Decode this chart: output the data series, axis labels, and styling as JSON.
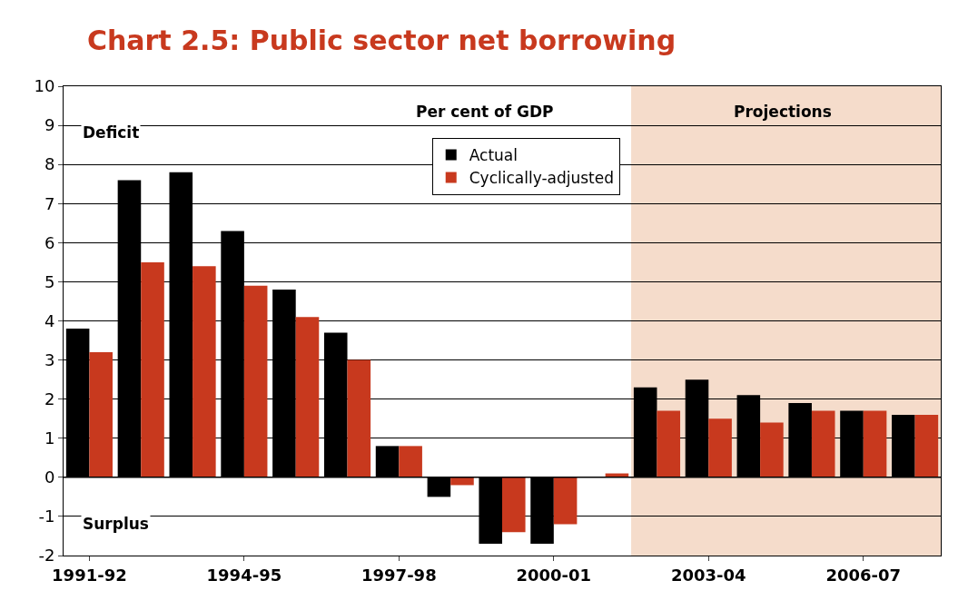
{
  "chart_data": {
    "type": "bar",
    "title": "Chart 2.5: Public sector net borrowing",
    "categories": [
      "1991-92",
      null,
      null,
      "1994-95",
      null,
      null,
      "1997-98",
      null,
      null,
      "2000-01",
      null,
      null,
      "2003-04",
      null,
      null,
      "2006-07",
      null
    ],
    "series": [
      {
        "name": "Actual",
        "color": "#000000",
        "values": [
          3.8,
          7.6,
          7.8,
          6.3,
          4.8,
          3.7,
          0.8,
          -0.5,
          -1.7,
          -1.7,
          0,
          2.3,
          2.5,
          2.1,
          1.9,
          1.7,
          1.6
        ]
      },
      {
        "name": "Cyclically-adjusted",
        "color": "#c8391e",
        "values": [
          3.2,
          5.5,
          5.4,
          4.9,
          4.1,
          3.0,
          0.8,
          -0.2,
          -1.4,
          -1.2,
          0.1,
          1.7,
          1.5,
          1.4,
          1.7,
          1.7,
          1.6
        ]
      }
    ],
    "ylim": [
      -2,
      10
    ],
    "yticks": [
      -2,
      -1,
      0,
      1,
      2,
      3,
      4,
      5,
      6,
      7,
      8,
      9,
      10
    ],
    "grid": "y",
    "legend": "top",
    "ref_lines": [
      {
        "axis": "y",
        "value": 0,
        "color": "#000000"
      }
    ],
    "annotations": [
      "Deficit",
      "Surplus",
      "Per cent of GDP",
      "Projections"
    ]
  }
}
